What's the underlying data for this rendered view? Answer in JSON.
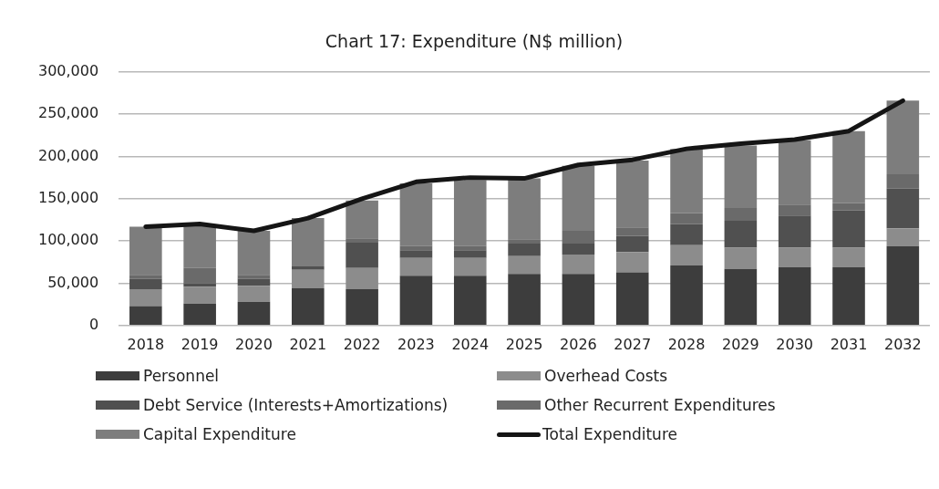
{
  "chart_data": {
    "type": "bar",
    "stacked": true,
    "title": "Chart 17: Expenditure (N$ million)",
    "categories": [
      "2018",
      "2019",
      "2020",
      "2021",
      "2022",
      "2023",
      "2024",
      "2025",
      "2026",
      "2027",
      "2028",
      "2029",
      "2030",
      "2031",
      "2032"
    ],
    "series": [
      {
        "name": "Personnel",
        "color": "#3d3d3d",
        "values": [
          23000,
          26000,
          28000,
          44000,
          43000,
          59000,
          59000,
          61000,
          61000,
          63000,
          71000,
          67000,
          69000,
          69000,
          94000
        ]
      },
      {
        "name": "Overhead Costs",
        "color": "#8c8c8c",
        "values": [
          20000,
          20000,
          19000,
          22000,
          25000,
          21000,
          21000,
          21000,
          23000,
          24000,
          24000,
          25000,
          23000,
          23000,
          21000
        ]
      },
      {
        "name": "Debt Service (Interests+Amortizations)",
        "color": "#505050",
        "values": [
          12000,
          4000,
          8000,
          4000,
          30000,
          9000,
          9000,
          15000,
          13000,
          19000,
          25000,
          32000,
          38000,
          44000,
          47000
        ]
      },
      {
        "name": "Other Recurrent Expenditures",
        "color": "#6a6a6a",
        "values": [
          5000,
          18000,
          5000,
          0,
          5000,
          5000,
          5000,
          5000,
          15000,
          10000,
          13000,
          15000,
          13000,
          9000,
          17000
        ]
      },
      {
        "name": "Capital Expenditure",
        "color": "#7d7d7d",
        "values": [
          57000,
          50000,
          52000,
          57000,
          45000,
          74000,
          78000,
          72000,
          77000,
          79000,
          76000,
          74000,
          76000,
          85000,
          87000
        ]
      },
      {
        "name": "Total Expenditure",
        "type": "line",
        "color": "#151515",
        "values": [
          117000,
          120000,
          112000,
          127000,
          150000,
          170000,
          175000,
          174000,
          190000,
          196000,
          209000,
          215000,
          220000,
          230000,
          266000
        ]
      }
    ],
    "ylim": [
      0,
      300000
    ],
    "yticks": [
      0,
      {
        "value": 50000,
        "label": "50,000"
      },
      {
        "value": 100000,
        "label": "100,000"
      },
      {
        "value": 150000,
        "label": "150,000"
      },
      {
        "value": 200000,
        "label": "200,000"
      },
      {
        "value": 250000,
        "label": "250,000"
      },
      {
        "value": 300000,
        "label": "300,000"
      }
    ],
    "grid": "y",
    "legend": "bottom",
    "marker": "none"
  }
}
